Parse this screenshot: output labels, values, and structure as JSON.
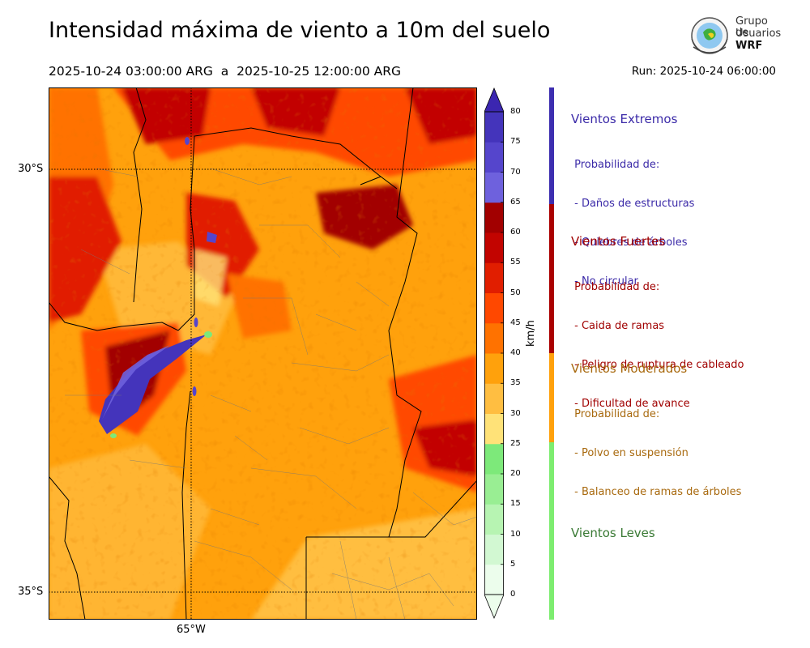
{
  "header": {
    "title": "Intensidad máxima de viento a 10m del suelo",
    "subtitle": "2025-10-24 03:00:00 ARG  a  2025-10-25 12:00:00 ARG",
    "run": "Run: 2025-10-24 06:00:00"
  },
  "logo": {
    "line1": "Grupo de",
    "line2": "Usuarios",
    "line3": "WRF"
  },
  "map": {
    "lat_labels": [
      "30°S",
      "35°S"
    ],
    "lon_labels": [
      "65°W"
    ]
  },
  "colorbar": {
    "unit": "km/h",
    "ticks": [
      "0",
      "5",
      "10",
      "15",
      "20",
      "25",
      "30",
      "35",
      "40",
      "45",
      "50",
      "55",
      "60",
      "65",
      "70",
      "75",
      "80"
    ],
    "colors": [
      "#ecfdec",
      "#d2f8d2",
      "#b7f4b2",
      "#99ee93",
      "#7de97a",
      "#ffe278",
      "#ffbe41",
      "#ffa10c",
      "#ff7200",
      "#ff4800",
      "#e11e00",
      "#c20400",
      "#a20000",
      "#6e61dd",
      "#5545cc",
      "#4434bb",
      "#3b26b0"
    ]
  },
  "legend": {
    "categories": [
      {
        "title": "Vientos Extremos",
        "color": "#3b2aa8",
        "lines": [
          " Probabilidad de:",
          " - Daños de estructuras",
          " - Quiebres de árboles",
          " - No circular"
        ]
      },
      {
        "title": "Vientos Fuertes",
        "color": "#a00000",
        "lines": [
          " Probabilidad de:",
          " - Caida de ramas",
          " - Peligro de ruptura de cableado",
          " - Dificultad de avance"
        ]
      },
      {
        "title": "Vientos Moderados",
        "color": "#a8690e",
        "lines": [
          " Probabilidad de:",
          " - Polvo en suspensión",
          " - Balanceo de ramas de árboles"
        ]
      },
      {
        "title": "Vientos Leves",
        "color": "#3a7a35",
        "lines": []
      }
    ],
    "stripe_colors": [
      "#3d2eb0",
      "#aa0000",
      "#ffa10c",
      "#7ded70"
    ]
  }
}
